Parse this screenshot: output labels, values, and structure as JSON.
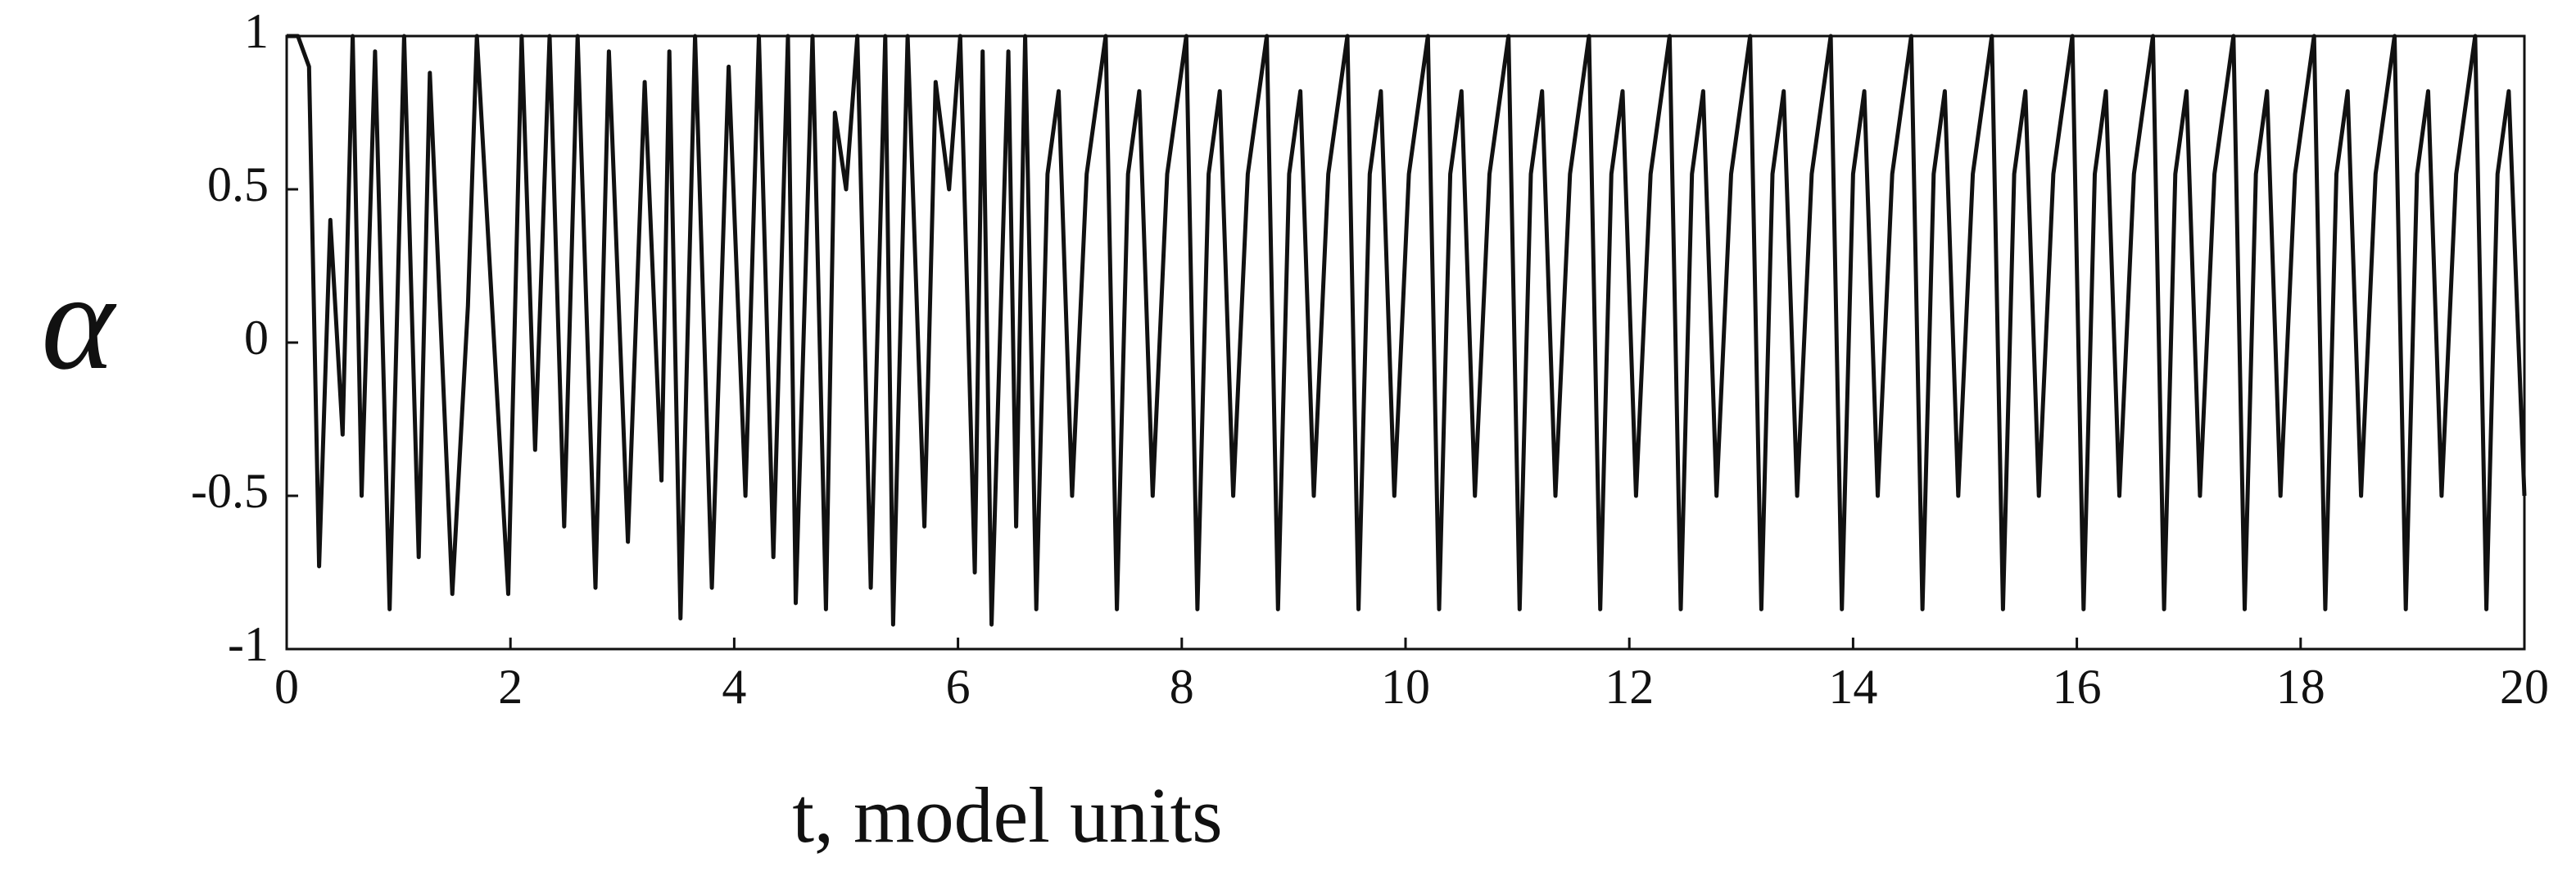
{
  "chart_data": {
    "type": "line",
    "x_label": "t, model units",
    "y_label": "α",
    "color": "#111111",
    "x": [
      0,
      0.1,
      0.2,
      0.29,
      0.39,
      0.5,
      0.59,
      0.67,
      0.79,
      0.92,
      1.05,
      1.18,
      1.28,
      1.48,
      1.62,
      1.7,
      1.98,
      2.1,
      2.22,
      2.35,
      2.48,
      2.6,
      2.76,
      2.88,
      3.05,
      3.2,
      3.35,
      3.42,
      3.52,
      3.65,
      3.8,
      3.95,
      4.1,
      4.22,
      4.35,
      4.48,
      4.55,
      4.7,
      4.82,
      4.9,
      5.0,
      5.1,
      5.22,
      5.35,
      5.42,
      5.55,
      5.7,
      5.8,
      5.92,
      6.02,
      6.15,
      6.22,
      6.3,
      6.45,
      6.52,
      6.6,
      6.7,
      6.8,
      6.9,
      7.02,
      7.15,
      7.32,
      7.42,
      7.52,
      7.62,
      7.74,
      7.87,
      8.04,
      8.14,
      8.24,
      8.34,
      8.46,
      8.59,
      8.76,
      8.86,
      8.96,
      9.06,
      9.18,
      9.31,
      9.48,
      9.58,
      9.68,
      9.78,
      9.9,
      10.03,
      10.2,
      10.3,
      10.4,
      10.5,
      10.62,
      10.75,
      10.92,
      11.02,
      11.12,
      11.22,
      11.34,
      11.47,
      11.64,
      11.74,
      11.84,
      11.94,
      12.06,
      12.19,
      12.36,
      12.46,
      12.56,
      12.66,
      12.78,
      12.91,
      13.08,
      13.18,
      13.28,
      13.38,
      13.5,
      13.63,
      13.8,
      13.9,
      14.0,
      14.1,
      14.22,
      14.35,
      14.52,
      14.62,
      14.72,
      14.82,
      14.94,
      15.07,
      15.24,
      15.34,
      15.44,
      15.54,
      15.66,
      15.79,
      15.96,
      16.06,
      16.16,
      16.26,
      16.38,
      16.51,
      16.68,
      16.78,
      16.88,
      16.98,
      17.1,
      17.23,
      17.4,
      17.5,
      17.6,
      17.7,
      17.82,
      17.95,
      18.12,
      18.22,
      18.32,
      18.42,
      18.54,
      18.67,
      18.84,
      18.94,
      19.04,
      19.14,
      19.26,
      19.39,
      19.56,
      19.66,
      19.76,
      19.86,
      20
    ],
    "values": [
      1,
      1,
      0.9,
      -0.73,
      0.4,
      -0.3,
      1,
      -0.5,
      0.95,
      -0.87,
      1,
      -0.7,
      0.88,
      -0.82,
      0.12,
      1,
      -0.82,
      1,
      -0.35,
      1,
      -0.6,
      1,
      -0.8,
      0.95,
      -0.65,
      0.85,
      -0.45,
      0.95,
      -0.9,
      1,
      -0.8,
      0.9,
      -0.5,
      1,
      -0.7,
      1,
      -0.85,
      1,
      -0.87,
      0.75,
      0.5,
      1,
      -0.8,
      1,
      -0.92,
      1,
      -0.6,
      0.85,
      0.5,
      1,
      -0.75,
      0.95,
      -0.92,
      0.95,
      -0.6,
      1,
      -0.87,
      0.55,
      0.82,
      -0.5,
      0.55,
      1,
      -0.87,
      0.55,
      0.82,
      -0.5,
      0.55,
      1,
      -0.87,
      0.55,
      0.82,
      -0.5,
      0.55,
      1,
      -0.87,
      0.55,
      0.82,
      -0.5,
      0.55,
      1,
      -0.87,
      0.55,
      0.82,
      -0.5,
      0.55,
      1,
      -0.87,
      0.55,
      0.82,
      -0.5,
      0.55,
      1,
      -0.87,
      0.55,
      0.82,
      -0.5,
      0.55,
      1,
      -0.87,
      0.55,
      0.82,
      -0.5,
      0.55,
      1,
      -0.87,
      0.55,
      0.82,
      -0.5,
      0.55,
      1,
      -0.87,
      0.55,
      0.82,
      -0.5,
      0.55,
      1,
      -0.87,
      0.55,
      0.82,
      -0.5,
      0.55,
      1,
      -0.87,
      0.55,
      0.82,
      -0.5,
      0.55,
      1,
      -0.87,
      0.55,
      0.82,
      -0.5,
      0.55,
      1,
      -0.87,
      0.55,
      0.82,
      -0.5,
      0.55,
      1,
      -0.87,
      0.55,
      0.82,
      -0.5,
      0.55,
      1,
      -0.87,
      0.55,
      0.82,
      -0.5,
      0.55,
      1,
      -0.87,
      0.55,
      0.82,
      -0.5,
      0.55,
      1,
      -0.87,
      0.55,
      0.82,
      -0.5,
      0.55,
      1,
      -0.87,
      0.55,
      0.82,
      -0.5
    ],
    "xlim": [
      0,
      20
    ],
    "xticks": [
      0,
      2,
      4,
      6,
      8,
      10,
      12,
      14,
      16,
      18,
      20
    ],
    "ylim": [
      -1,
      1
    ],
    "yticks": [
      1,
      0.5,
      0,
      -0.5,
      -1
    ]
  }
}
